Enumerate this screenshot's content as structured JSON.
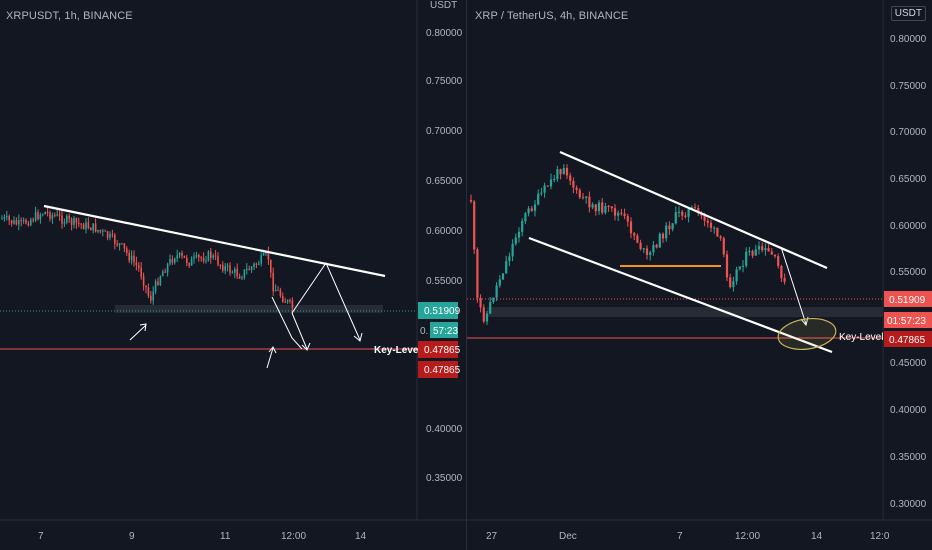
{
  "left_chart": {
    "title": "XRPUSDT, 1h, BINANCE",
    "currency": "USDT",
    "y_ticks": [
      "0.80000",
      "0.75000",
      "0.70000",
      "0.65000",
      "0.60000",
      "0.55000",
      "0.40000",
      "0.35000"
    ],
    "x_ticks": [
      "7",
      "9",
      "11",
      "12:00",
      "14"
    ],
    "price_label": "0.51909",
    "countdown": "57:23",
    "hidden_partial": "0.",
    "key_price_1": "0.47865",
    "key_price_2": "0.47865",
    "key_level": "Key-Level"
  },
  "right_chart": {
    "title": "XRP / TetherUS, 4h, BINANCE",
    "currency": "USDT",
    "y_ticks": [
      "0.80000",
      "0.75000",
      "0.70000",
      "0.65000",
      "0.60000",
      "0.55000",
      "0.45000",
      "0.40000",
      "0.35000",
      "0.30000"
    ],
    "x_ticks": [
      "27",
      "Dec",
      "7",
      "12:00",
      "14",
      "12:0"
    ],
    "price_label": "0.51909",
    "countdown": "01:57:23",
    "key_price": "0.47865",
    "key_level": "Key-Level"
  },
  "colors": {
    "up": "#26a69a",
    "down": "#ef5350",
    "background": "#131722",
    "price_tag": "#26a69a",
    "key_tag": "#b71c1c",
    "annotation": "#ffffff",
    "ellipse": "#c9b458",
    "orange_line": "#f7931a"
  }
}
